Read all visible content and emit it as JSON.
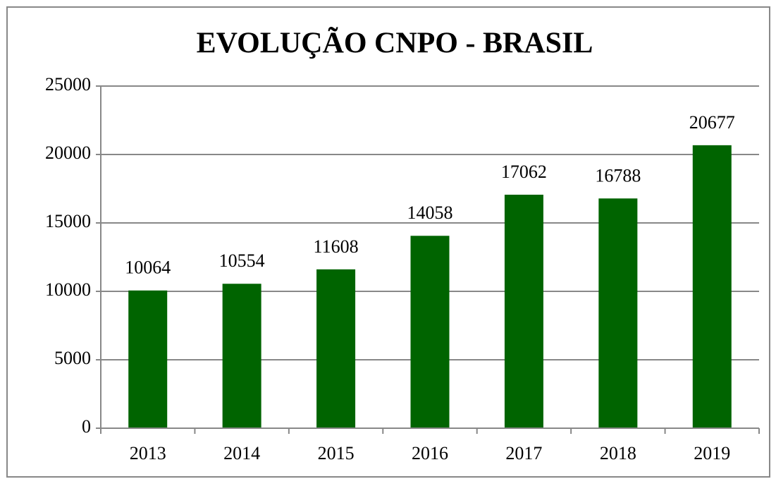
{
  "chart_data": {
    "type": "bar",
    "title": "EVOLUÇÃO CNPO - BRASIL",
    "categories": [
      "2013",
      "2014",
      "2015",
      "2016",
      "2017",
      "2018",
      "2019"
    ],
    "values": [
      10064,
      10554,
      11608,
      14058,
      17062,
      16788,
      20677
    ],
    "color": "#006400",
    "ylim": [
      0,
      25000
    ],
    "yticks": [
      0,
      5000,
      10000,
      15000,
      20000,
      25000
    ],
    "grid": true
  }
}
